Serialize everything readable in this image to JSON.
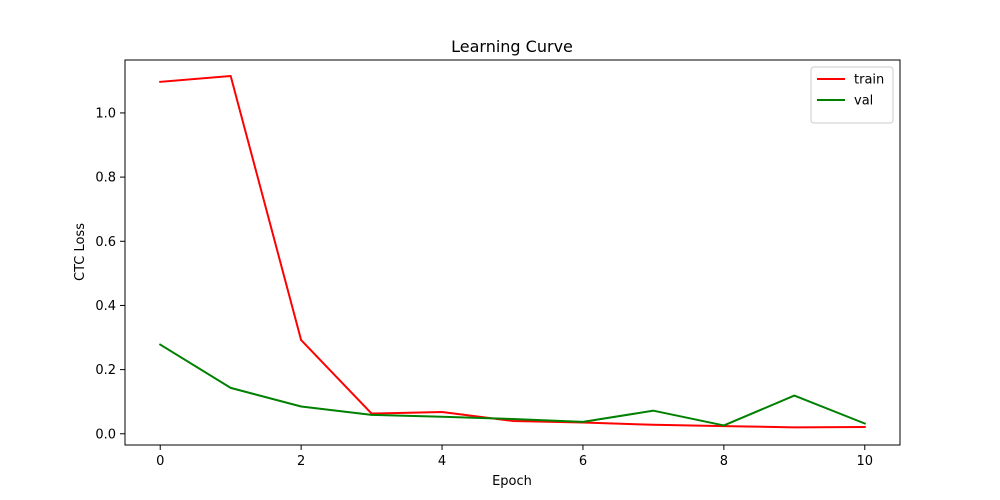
{
  "chart_data": {
    "type": "line",
    "title": "Learning Curve",
    "xlabel": "Epoch",
    "ylabel": "CTC Loss",
    "xlim": [
      -0.5,
      10.5
    ],
    "ylim": [
      -0.035,
      1.165
    ],
    "xticks": [
      0,
      2,
      4,
      6,
      8,
      10
    ],
    "xtick_labels": [
      "0",
      "2",
      "4",
      "6",
      "8",
      "10"
    ],
    "yticks": [
      0.0,
      0.2,
      0.4,
      0.6,
      0.8,
      1.0
    ],
    "ytick_labels": [
      "0.0",
      "0.2",
      "0.4",
      "0.6",
      "0.8",
      "1.0"
    ],
    "grid": false,
    "legend": "top-right",
    "x": [
      0,
      1,
      2,
      3,
      4,
      5,
      6,
      7,
      8,
      9,
      10
    ],
    "series": [
      {
        "name": "train",
        "color": "#ff0000",
        "values": [
          1.097,
          1.115,
          0.292,
          0.063,
          0.068,
          0.04,
          0.035,
          0.028,
          0.024,
          0.02,
          0.021
        ]
      },
      {
        "name": "val",
        "color": "#008000",
        "values": [
          0.278,
          0.143,
          0.085,
          0.059,
          0.053,
          0.046,
          0.037,
          0.072,
          0.026,
          0.119,
          0.032
        ]
      }
    ]
  }
}
